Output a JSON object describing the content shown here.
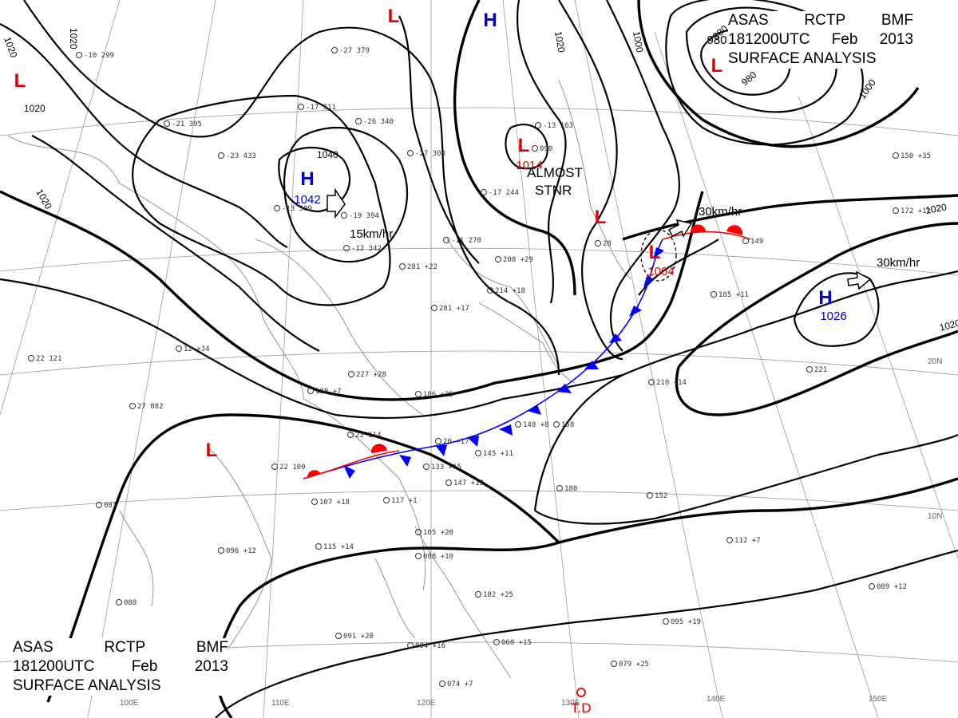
{
  "header": {
    "line1": [
      "ASAS",
      "RCTP",
      "BMF"
    ],
    "line2": [
      "181200UTC",
      "Feb",
      "2013"
    ],
    "line3": "SURFACE ANALYSIS"
  },
  "pressure_systems": [
    {
      "type": "L",
      "color": "#e00000"
    },
    {
      "type": "H",
      "color": "#0000cc"
    },
    {
      "type": "L",
      "color": "#e00000"
    },
    {
      "type": "L",
      "color": "#e00000",
      "value": "980"
    },
    {
      "type": "H",
      "color": "#0000cc",
      "value": "1042"
    },
    {
      "type": "L",
      "color": "#e00000",
      "value": "1014"
    },
    {
      "type": "L",
      "color": "#e00000"
    },
    {
      "type": "L",
      "color": "#e00000",
      "value": "1004"
    },
    {
      "type": "H",
      "color": "#0000cc",
      "value": "1026"
    },
    {
      "type": "L",
      "color": "#e00000"
    }
  ],
  "isobar_labels": [
    "1020",
    "1020",
    "1020",
    "1020",
    "1040",
    "1020",
    "1000",
    "980",
    "980",
    "1000",
    "1020",
    "1020"
  ],
  "motion_labels": [
    "15km/hr",
    "30km/hr",
    "30km/hr"
  ],
  "annotations": {
    "almost": "ALMOST",
    "stnr": "STNR",
    "td": "T.D"
  },
  "latitude_labels": [
    "20N",
    "10N"
  ],
  "longitude_labels": [
    "100E",
    "110E",
    "120E",
    "130E",
    "140E",
    "150E"
  ],
  "station_labels": [
    "-27 379",
    "-26 340",
    "-21 395",
    "-23 433",
    "-19 394",
    "-13 309",
    "-12 342",
    "-17 311",
    "-11 270",
    "-27 308",
    "-17 244",
    "-13 163",
    "-10 299",
    "281 +22",
    "208 +29",
    "214 +18",
    "281 +17",
    "12 +34",
    "22 121",
    "27 082",
    "22 100",
    "23 114",
    "20 +17",
    "133 +15",
    "147 +13",
    "145 +11",
    "158",
    "148 +8",
    "188 +7",
    "186 +25",
    "227 +28",
    "107 +18",
    "117 +1",
    "115 +14",
    "096 +12",
    "081",
    "088",
    "105 +20",
    "088 +10",
    "102 +25",
    "091 +20",
    "084 +16",
    "060 +15",
    "074 +7",
    "079 +25",
    "095 +19",
    "089 +12",
    "112 +7",
    "180",
    "152",
    "210 +14",
    "221",
    "185 +11",
    "149",
    "150 +35",
    "172 +12",
    "090",
    "28"
  ],
  "colors": {
    "high": "#0000cc",
    "low": "#e00000",
    "cold_front": "#0000ff",
    "warm_front": "#ff0000"
  }
}
